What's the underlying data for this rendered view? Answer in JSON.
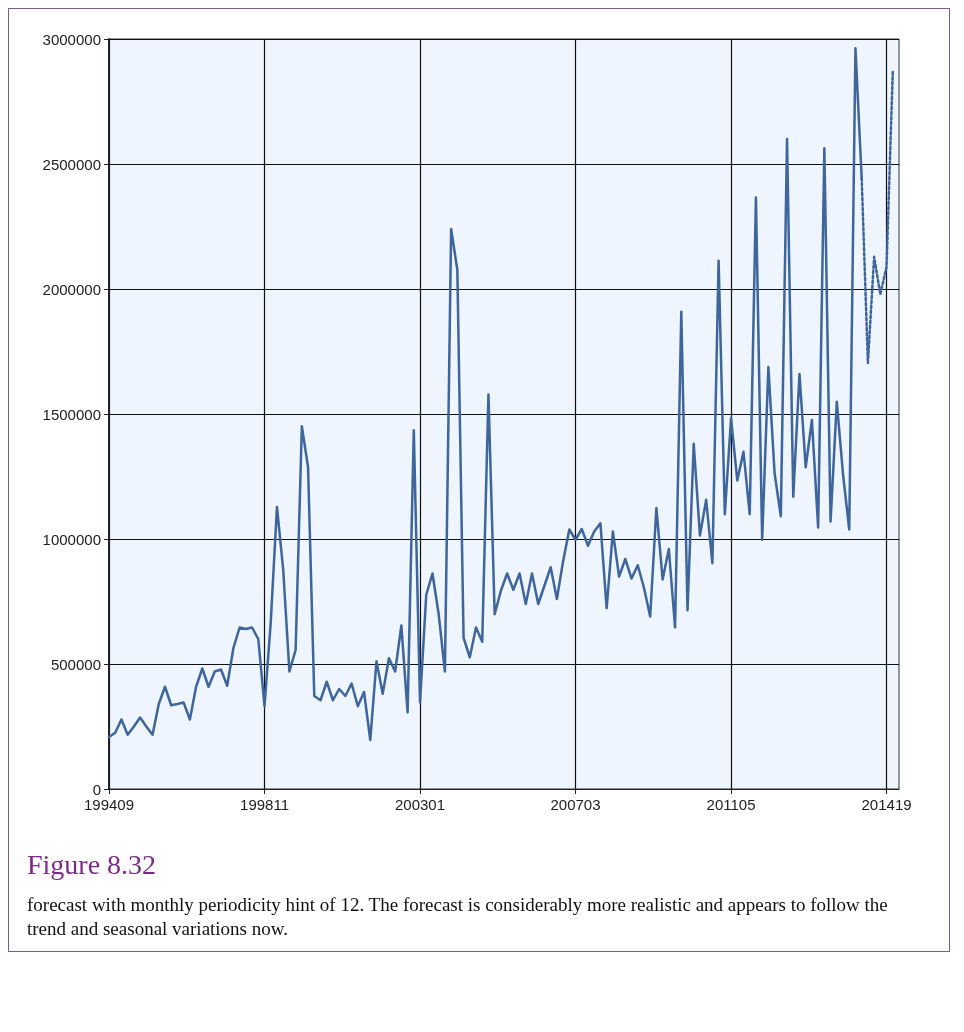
{
  "chart_data": {
    "type": "line",
    "title": "Figure 8.32",
    "annotations": [
      "forecast with monthly periodicity hint of 12. The forecast is considerably more realistic and appears to follow the trend and seasonal variations now."
    ],
    "categories": [
      "199409",
      null,
      null,
      null,
      null,
      null,
      null,
      null,
      null,
      null,
      null,
      null,
      null,
      null,
      null,
      null,
      null,
      null,
      null,
      null,
      null,
      null,
      null,
      null,
      null,
      "199811",
      null,
      null,
      null,
      null,
      null,
      null,
      null,
      null,
      null,
      null,
      null,
      null,
      null,
      null,
      null,
      null,
      null,
      null,
      null,
      null,
      null,
      null,
      null,
      null,
      "200301",
      null,
      null,
      null,
      null,
      null,
      null,
      null,
      null,
      null,
      null,
      null,
      null,
      null,
      null,
      null,
      null,
      null,
      null,
      null,
      null,
      null,
      null,
      null,
      null,
      "200703",
      null,
      null,
      null,
      null,
      null,
      null,
      null,
      null,
      null,
      null,
      null,
      null,
      null,
      null,
      null,
      null,
      null,
      null,
      null,
      null,
      null,
      null,
      null,
      null,
      "201105",
      null,
      null,
      null,
      null,
      null,
      null,
      null,
      null,
      null,
      null,
      null,
      null,
      null,
      null,
      null,
      null,
      null,
      null,
      null,
      null,
      null,
      null,
      null,
      null,
      "201419",
      null,
      null
    ],
    "series": [
      {
        "color": "#3e659c",
        "values": [
          208000,
          225000,
          278000,
          217000,
          250000,
          286000,
          250000,
          217000,
          340000,
          409000,
          335000,
          340000,
          346000,
          278000,
          409000,
          482000,
          409000,
          470000,
          478000,
          413000,
          564000,
          646000,
          640000,
          646000,
          600000,
          331000,
          666000,
          1128000,
          879000,
          470000,
          556000,
          1451000,
          1287000,
          372000,
          355000,
          429000,
          355000,
          400000,
          372000,
          422000,
          331000,
          388000,
          196000,
          511000,
          381000,
          523000,
          470000,
          654000,
          306000,
          1435000,
          347000,
          777000,
          862000,
          699000,
          470000,
          2240000,
          2076000,
          605000,
          527000,
          646000,
          589000,
          1578000,
          699000,
          793000,
          862000,
          797000,
          862000,
          740000,
          862000,
          740000,
          813000,
          887000,
          760000,
          911000,
          1038000,
          997000,
          1040000,
          973000,
          1030000,
          1063000,
          723000,
          1030000,
          850000,
          920000,
          842000,
          895000,
          805000,
          690000,
          1124000,
          838000,
          960000,
          646000,
          1909000,
          715000,
          1381000,
          1014000,
          1157000,
          903000,
          2113000,
          1099000,
          1484000,
          1234000,
          1349000,
          1099000,
          2366000,
          997000,
          1688000,
          1263000,
          1091000,
          2600000,
          1169000,
          1660000,
          1287000,
          1476000,
          1046000,
          2563000,
          1070000,
          1549000,
          1259000,
          1038000,
          2963000,
          2444000,
          null,
          null,
          null,
          null,
          null,
          null
        ]
      },
      {
        "color": "#3e659c",
        "line_style": "dotted",
        "values": [
          null,
          null,
          null,
          null,
          null,
          null,
          null,
          null,
          null,
          null,
          null,
          null,
          null,
          null,
          null,
          null,
          null,
          null,
          null,
          null,
          null,
          null,
          null,
          null,
          null,
          null,
          null,
          null,
          null,
          null,
          null,
          null,
          null,
          null,
          null,
          null,
          null,
          null,
          null,
          null,
          null,
          null,
          null,
          null,
          null,
          null,
          null,
          null,
          null,
          null,
          null,
          null,
          null,
          null,
          null,
          null,
          null,
          null,
          null,
          null,
          null,
          null,
          null,
          null,
          null,
          null,
          null,
          null,
          null,
          null,
          null,
          null,
          null,
          null,
          null,
          null,
          null,
          null,
          null,
          null,
          null,
          null,
          null,
          null,
          null,
          null,
          null,
          null,
          null,
          null,
          null,
          null,
          null,
          null,
          null,
          null,
          null,
          null,
          null,
          null,
          null,
          null,
          null,
          null,
          null,
          null,
          null,
          null,
          null,
          null,
          null,
          null,
          null,
          null,
          null,
          null,
          null,
          null,
          null,
          null,
          null,
          2444000,
          1704000,
          2129000,
          1979000,
          2089000,
          2869000,
          null
        ]
      }
    ],
    "ylim": [
      0,
      3000000
    ],
    "yticks": [
      0,
      500000,
      1000000,
      1500000,
      2000000,
      2500000,
      3000000
    ],
    "grid": true,
    "marker": "none",
    "line_style": "solid"
  }
}
